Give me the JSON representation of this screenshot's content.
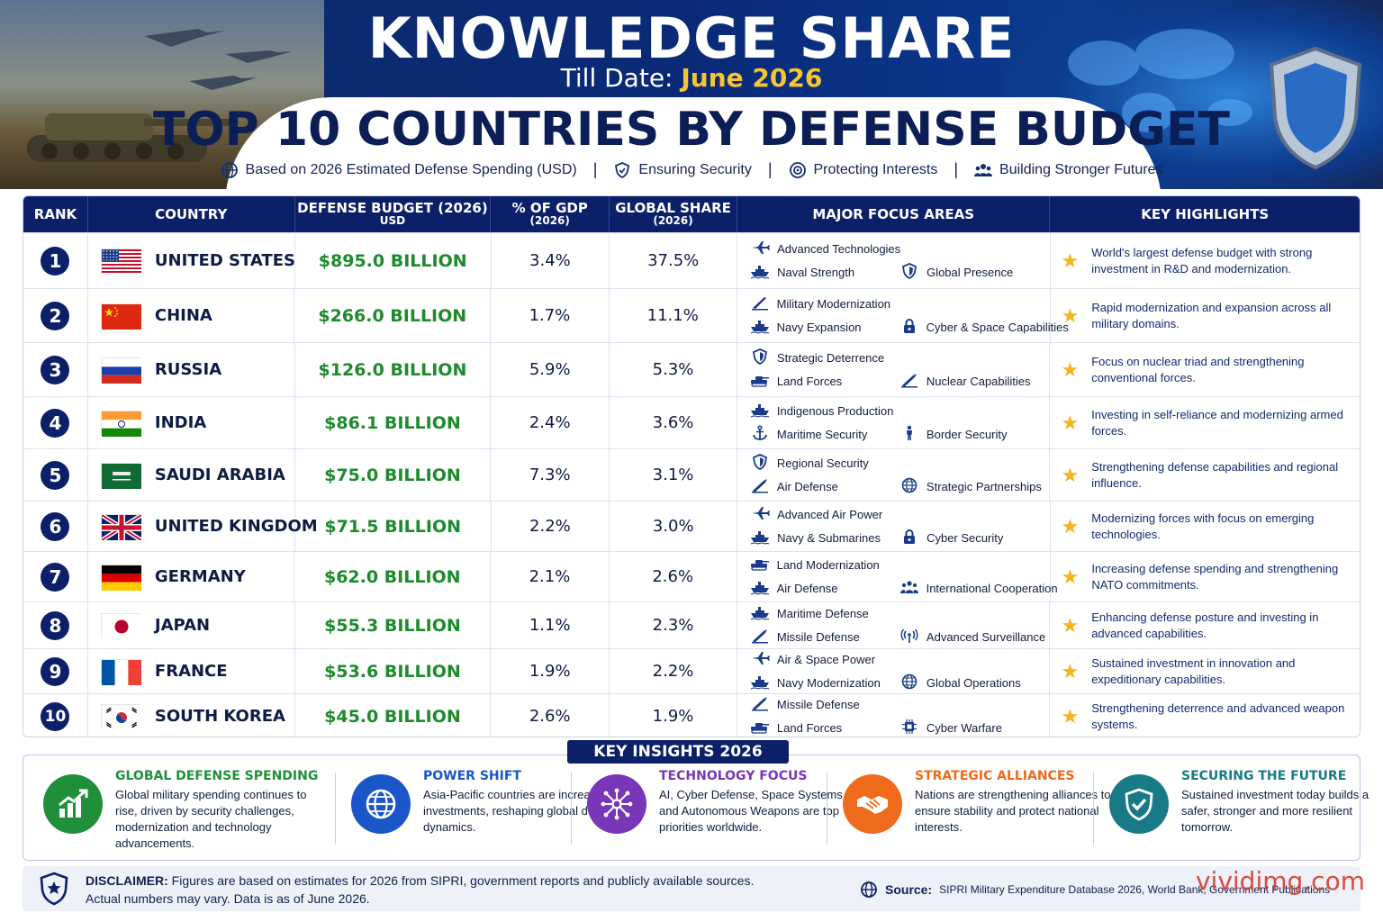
{
  "header": {
    "title": "KNOWLEDGE SHARE",
    "date_label": "Till Date:",
    "date_value": "June 2026",
    "subtitle": "TOP 10 COUNTRIES BY DEFENSE BUDGET",
    "taglines": [
      {
        "icon": "globe-icon",
        "text": "Based on 2026 Estimated Defense Spending (USD)"
      },
      {
        "icon": "shield-icon",
        "text": "Ensuring Security"
      },
      {
        "icon": "target-icon",
        "text": "Protecting Interests"
      },
      {
        "icon": "people-icon",
        "text": "Building Stronger Futures"
      }
    ]
  },
  "table": {
    "headers": {
      "rank": "RANK",
      "country": "COUNTRY",
      "budget": "DEFENSE BUDGET (2026)",
      "budget_sub": "USD",
      "gdp": "% OF GDP",
      "gdp_sub": "(2026)",
      "share": "GLOBAL SHARE",
      "share_sub": "(2026)",
      "focus": "MAJOR FOCUS AREAS",
      "highlights": "KEY HIGHLIGHTS"
    },
    "rows": [
      {
        "rank": "1",
        "country": "UNITED STATES",
        "flag": "us",
        "budget": "$895.0 BILLION",
        "gdp": "3.4%",
        "share": "37.5%",
        "f1": "Advanced Technologies",
        "f1_icon": "jet-icon",
        "f2": "Naval Strength",
        "f2_icon": "ship-icon",
        "f3": "Global Presence",
        "f3_icon": "shield-icon",
        "highlight": "World's largest defense budget with strong investment in R&D and modernization."
      },
      {
        "rank": "2",
        "country": "CHINA",
        "flag": "cn",
        "budget": "$266.0 BILLION",
        "gdp": "1.7%",
        "share": "11.1%",
        "f1": "Military Modernization",
        "f1_icon": "rifle-icon",
        "f2": "Navy Expansion",
        "f2_icon": "ship-icon",
        "f3": "Cyber & Space Capabilities",
        "f3_icon": "lock-icon",
        "highlight": "Rapid modernization and expansion across all military domains."
      },
      {
        "rank": "3",
        "country": "RUSSIA",
        "flag": "ru",
        "budget": "$126.0 BILLION",
        "gdp": "5.9%",
        "share": "5.3%",
        "f1": "Strategic Deterrence",
        "f1_icon": "shield-icon",
        "f2": "Land Forces",
        "f2_icon": "tank-icon",
        "f3": "Nuclear Capabilities",
        "f3_icon": "missile-icon",
        "highlight": "Focus on nuclear triad and strengthening conventional forces."
      },
      {
        "rank": "4",
        "country": "INDIA",
        "flag": "in",
        "budget": "$86.1 BILLION",
        "gdp": "2.4%",
        "share": "3.6%",
        "f1": "Indigenous Production",
        "f1_icon": "ship-icon",
        "f2": "Maritime Security",
        "f2_icon": "anchor-icon",
        "f3": "Border Security",
        "f3_icon": "soldier-icon",
        "highlight": "Investing in self-reliance and modernizing armed forces."
      },
      {
        "rank": "5",
        "country": "SAUDI ARABIA",
        "flag": "sa",
        "budget": "$75.0 BILLION",
        "gdp": "7.3%",
        "share": "3.1%",
        "f1": "Regional Security",
        "f1_icon": "shield-icon",
        "f2": "Air Defense",
        "f2_icon": "missile-icon",
        "f3": "Strategic Partnerships",
        "f3_icon": "globe-icon",
        "highlight": "Strengthening defense capabilities and regional influence."
      },
      {
        "rank": "6",
        "country": "UNITED KINGDOM",
        "flag": "gb",
        "budget": "$71.5 BILLION",
        "gdp": "2.2%",
        "share": "3.0%",
        "f1": "Advanced Air Power",
        "f1_icon": "jet-icon",
        "f2": "Navy & Submarines",
        "f2_icon": "ship-icon",
        "f3": "Cyber Security",
        "f3_icon": "lock-icon",
        "highlight": "Modernizing forces with focus on emerging technologies."
      },
      {
        "rank": "7",
        "country": "GERMANY",
        "flag": "de",
        "budget": "$62.0 BILLION",
        "gdp": "2.1%",
        "share": "2.6%",
        "f1": "Land Modernization",
        "f1_icon": "tank-icon",
        "f2": "Air Defense",
        "f2_icon": "ship-icon",
        "f3": "International Cooperation",
        "f3_icon": "people-icon",
        "highlight": "Increasing defense spending and strengthening NATO commitments."
      },
      {
        "rank": "8",
        "country": "JAPAN",
        "flag": "jp",
        "budget": "$55.3 BILLION",
        "gdp": "1.1%",
        "share": "2.3%",
        "f1": "Maritime Defense",
        "f1_icon": "ship-icon",
        "f2": "Missile Defense",
        "f2_icon": "missile-icon",
        "f3": "Advanced Surveillance",
        "f3_icon": "radar-icon",
        "highlight": "Enhancing defense posture and investing in advanced capabilities."
      },
      {
        "rank": "9",
        "country": "FRANCE",
        "flag": "fr",
        "budget": "$53.6 BILLION",
        "gdp": "1.9%",
        "share": "2.2%",
        "f1": "Air & Space Power",
        "f1_icon": "jet-icon",
        "f2": "Navy Modernization",
        "f2_icon": "ship-icon",
        "f3": "Global Operations",
        "f3_icon": "globe-icon",
        "highlight": "Sustained investment in innovation and expeditionary capabilities."
      },
      {
        "rank": "10",
        "country": "SOUTH KOREA",
        "flag": "kr",
        "budget": "$45.0 BILLION",
        "gdp": "2.6%",
        "share": "1.9%",
        "f1": "Missile Defense",
        "f1_icon": "missile-icon",
        "f2": "Land Forces",
        "f2_icon": "tank-icon",
        "f3": "Cyber Warfare",
        "f3_icon": "chip-icon",
        "highlight": "Strengthening deterrence and advanced weapon systems."
      }
    ]
  },
  "insights": {
    "title": "KEY INSIGHTS 2026",
    "items": [
      {
        "heading": "GLOBAL DEFENSE SPENDING",
        "body": "Global military spending continues to rise, driven by security challenges, modernization and technology advancements.",
        "color": "#1f8f3a",
        "icon": "growth-chart-icon"
      },
      {
        "heading": "POWER SHIFT",
        "body": "Asia-Pacific countries are increasing investments, reshaping global defense dynamics.",
        "color": "#1a56c8",
        "icon": "globe-icon"
      },
      {
        "heading": "TECHNOLOGY FOCUS",
        "body": "AI, Cyber Defense, Space Systems and Autonomous Weapons are top priorities worldwide.",
        "color": "#7a36b8",
        "icon": "network-icon"
      },
      {
        "heading": "STRATEGIC ALLIANCES",
        "body": "Nations are strengthening alliances to ensure stability and protect national interests.",
        "color": "#ef6a1a",
        "icon": "handshake-icon"
      },
      {
        "heading": "SECURING THE FUTURE",
        "body": "Sustained investment today builds a safer, stronger and more resilient tomorrow.",
        "color": "#177a86",
        "icon": "shield-check-icon"
      }
    ]
  },
  "footer": {
    "disclaimer_label": "DISCLAIMER:",
    "disclaimer_line1": "Figures are based on estimates for 2026 from SIPRI, government reports and publicly available sources.",
    "disclaimer_line2": "Actual numbers may vary. Data is as of June 2026.",
    "source_label": "Source:",
    "source_text": "SIPRI Military Expenditure Database 2026, World Bank, Government Publications",
    "watermark": "vividimg.com"
  }
}
